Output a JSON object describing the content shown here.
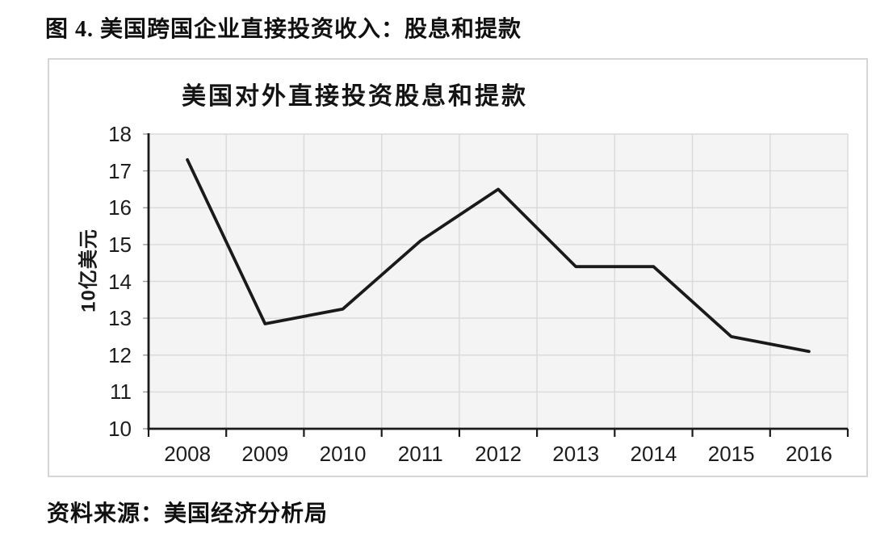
{
  "page": {
    "figure_title": "图 4. 美国跨国企业直接投资收入：股息和提款",
    "source": "资料来源：美国经济分析局"
  },
  "chart_data": {
    "type": "line",
    "title": "美国对外直接投资股息和提款",
    "ylabel": "10亿美元",
    "categories": [
      "2008",
      "2009",
      "2010",
      "2011",
      "2012",
      "2013",
      "2014",
      "2015",
      "2016"
    ],
    "values": [
      17.3,
      12.85,
      13.25,
      15.1,
      16.5,
      14.4,
      14.4,
      12.5,
      12.1
    ],
    "ylim": [
      10,
      18
    ],
    "ytick_step": 1,
    "grid": true,
    "legend": "none",
    "line_color": "#1a1a1a",
    "axis_color": "#1a1a1a",
    "grid_color": "#d9d9d9",
    "plot_bg": "#f4f4f4",
    "tick_label_color": "#1d1d1d"
  }
}
